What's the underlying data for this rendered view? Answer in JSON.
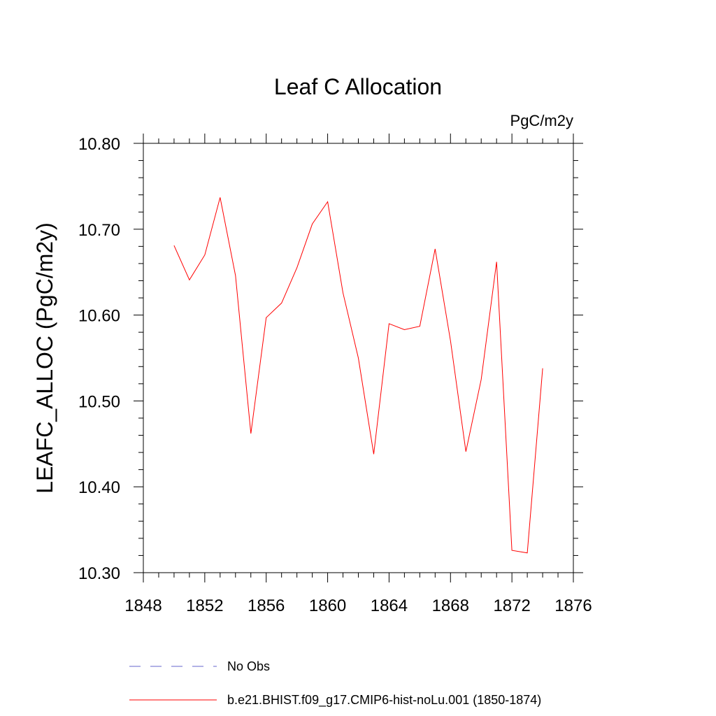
{
  "chart_data": {
    "type": "line",
    "title": "Leaf C Allocation",
    "units": "PgC/m2y",
    "ylabel": "LEAFC_ALLOC  (PgC/m2y)",
    "xlim": [
      1848,
      1876
    ],
    "ylim": [
      10.3,
      10.8
    ],
    "x_ticks": [
      1848,
      1852,
      1856,
      1860,
      1864,
      1868,
      1872,
      1876
    ],
    "x_tick_labels": [
      "1848",
      "1852",
      "1856",
      "1860",
      "1864",
      "1868",
      "1872",
      "1876"
    ],
    "y_ticks": [
      10.3,
      10.4,
      10.5,
      10.6,
      10.7,
      10.8
    ],
    "y_tick_labels": [
      "10.30",
      "10.40",
      "10.50",
      "10.60",
      "10.70",
      "10.80"
    ],
    "series": [
      {
        "name": "b.e21.BHIST.f09_g17.CMIP6-hist-noLu.001 (1850-1874)",
        "color": "#ff0000",
        "style": "solid",
        "x": [
          1850,
          1851,
          1852,
          1853,
          1854,
          1855,
          1856,
          1857,
          1858,
          1859,
          1860,
          1861,
          1862,
          1863,
          1864,
          1865,
          1866,
          1867,
          1868,
          1869,
          1870,
          1871,
          1872,
          1873,
          1874
        ],
        "y": [
          10.681,
          10.641,
          10.67,
          10.737,
          10.646,
          10.462,
          10.597,
          10.614,
          10.655,
          10.706,
          10.732,
          10.626,
          10.55,
          10.438,
          10.59,
          10.583,
          10.587,
          10.677,
          10.57,
          10.441,
          10.525,
          10.662,
          10.326,
          10.323,
          10.538
        ]
      }
    ],
    "legend": [
      {
        "label": "No Obs",
        "color": "#6666cc",
        "style": "dashed"
      },
      {
        "label": "b.e21.BHIST.f09_g17.CMIP6-hist-noLu.001 (1850-1874)",
        "color": "#ff0000",
        "style": "solid"
      }
    ],
    "legend_position": "bottom",
    "grid": false
  }
}
